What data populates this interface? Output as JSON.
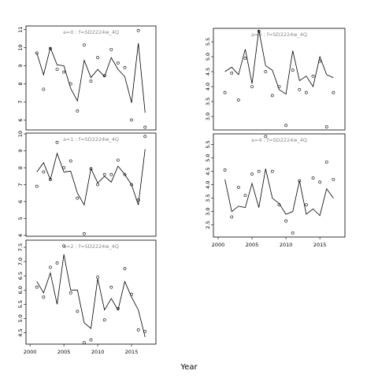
{
  "xlabel": "Year",
  "chart_data": [
    {
      "type": "line",
      "title": "a=0  :  f=SD2224w_4Q",
      "x": [
        2001,
        2002,
        2003,
        2004,
        2005,
        2006,
        2007,
        2008,
        2009,
        2010,
        2011,
        2012,
        2013,
        2014,
        2015,
        2016,
        2017
      ],
      "series": [
        {
          "style": "points",
          "color": "#000000",
          "values": [
            9.7,
            7.7,
            9.95,
            8.8,
            8.65,
            8.0,
            6.5,
            10.15,
            8.15,
            9.45,
            8.45,
            9.9,
            9.15,
            8.9,
            6.0,
            10.95,
            5.6
          ]
        },
        {
          "style": "line",
          "color": "#000000",
          "values": [
            9.7,
            8.5,
            10.0,
            9.05,
            9.0,
            7.75,
            7.05,
            9.3,
            8.35,
            8.8,
            8.4,
            9.45,
            8.8,
            8.4,
            6.95,
            10.25,
            6.4
          ]
        }
      ],
      "xlim": [
        1999.4,
        2018.6
      ],
      "ylim": [
        5.45,
        11.2
      ],
      "yticks": [
        6,
        7,
        8,
        9,
        10,
        11
      ]
    },
    {
      "type": "line",
      "title": "a=1  :  f=SD2224w_4Q",
      "x": [
        2001,
        2002,
        2003,
        2004,
        2005,
        2006,
        2007,
        2008,
        2009,
        2010,
        2011,
        2012,
        2013,
        2014,
        2015,
        2016,
        2017
      ],
      "series": [
        {
          "style": "points",
          "color": "#000000",
          "values": [
            6.9,
            7.75,
            7.3,
            9.5,
            8.0,
            8.4,
            6.2,
            4.1,
            7.95,
            7.0,
            7.6,
            7.6,
            8.45,
            7.6,
            7.0,
            6.1,
            9.85
          ]
        },
        {
          "style": "line",
          "color": "#000000",
          "values": [
            7.75,
            8.3,
            7.3,
            8.85,
            7.75,
            7.8,
            6.5,
            5.8,
            7.95,
            7.1,
            7.5,
            7.15,
            8.1,
            7.6,
            7.0,
            5.8,
            9.1
          ]
        }
      ],
      "xlim": [
        1999.4,
        2018.6
      ],
      "ylim": [
        3.95,
        10.05
      ],
      "yticks": [
        4,
        5,
        6,
        7,
        8,
        9,
        10
      ]
    },
    {
      "type": "line",
      "title": "a=2  :  f=SD2224w_4Q",
      "x": [
        2001,
        2002,
        2003,
        2004,
        2005,
        2006,
        2007,
        2008,
        2009,
        2010,
        2011,
        2012,
        2013,
        2014,
        2015,
        2016,
        2017
      ],
      "series": [
        {
          "style": "points",
          "color": "#000000",
          "values": [
            6.1,
            5.75,
            6.8,
            6.95,
            7.55,
            5.9,
            5.25,
            4.15,
            4.25,
            6.45,
            4.95,
            6.1,
            5.35,
            6.75,
            5.85,
            4.6,
            4.55
          ]
        },
        {
          "style": "line",
          "color": "#000000",
          "values": [
            6.3,
            5.9,
            6.6,
            5.5,
            7.25,
            6.0,
            6.0,
            4.85,
            4.65,
            6.4,
            5.3,
            5.7,
            5.3,
            6.3,
            5.75,
            5.3,
            4.35
          ]
        }
      ],
      "xlim": [
        1999.4,
        2018.6
      ],
      "ylim": [
        4.1,
        7.75
      ],
      "yticks": [
        4.5,
        {
          "value": 5,
          "label": "5.0"
        },
        5.5,
        {
          "value": 6,
          "label": "6.0"
        },
        6.5,
        {
          "value": 7,
          "label": "7.0"
        },
        7.5
      ],
      "xticks": [
        2000,
        2005,
        2010,
        2015
      ]
    },
    {
      "type": "line",
      "title": "a=3  :  f=SD2224w_4Q",
      "x": [
        2001,
        2002,
        2003,
        2004,
        2005,
        2006,
        2007,
        2008,
        2009,
        2010,
        2011,
        2012,
        2013,
        2014,
        2015,
        2016,
        2017
      ],
      "series": [
        {
          "style": "points",
          "color": "#000000",
          "values": [
            3.8,
            4.45,
            3.55,
            4.95,
            4.0,
            5.85,
            4.5,
            3.7,
            4.0,
            2.7,
            4.55,
            3.9,
            3.8,
            4.35,
            4.85,
            2.65,
            3.8
          ]
        },
        {
          "style": "line",
          "color": "#000000",
          "values": [
            4.5,
            4.65,
            4.4,
            5.25,
            4.1,
            5.9,
            4.7,
            4.55,
            3.9,
            3.75,
            5.2,
            4.2,
            4.35,
            4.0,
            5.0,
            4.4,
            4.3
          ]
        }
      ],
      "xlim": [
        1999.3,
        2018.7
      ],
      "ylim": [
        2.55,
        5.95
      ],
      "yticks": [
        {
          "value": 3,
          "label": "3.0"
        },
        3.5,
        {
          "value": 4,
          "label": "4.0"
        },
        4.5,
        {
          "value": 5,
          "label": "5.0"
        },
        5.5
      ]
    },
    {
      "type": "line",
      "title": "a=4  :  f=SD2224w_4Q",
      "x": [
        2001,
        2002,
        2003,
        2004,
        2005,
        2006,
        2007,
        2008,
        2009,
        2010,
        2011,
        2012,
        2013,
        2014,
        2015,
        2016,
        2017
      ],
      "series": [
        {
          "style": "points",
          "color": "#000000",
          "values": [
            4.55,
            2.8,
            3.9,
            3.6,
            4.4,
            4.5,
            5.8,
            4.5,
            3.25,
            2.65,
            2.2,
            4.15,
            3.25,
            4.25,
            4.1,
            4.85,
            4.2
          ]
        },
        {
          "style": "line",
          "color": "#000000",
          "values": [
            4.2,
            3.0,
            3.2,
            3.15,
            4.05,
            3.15,
            4.6,
            3.5,
            3.3,
            2.9,
            3.0,
            4.15,
            2.9,
            3.1,
            2.85,
            3.85,
            3.5
          ]
        }
      ],
      "xlim": [
        1999.3,
        2018.7
      ],
      "ylim": [
        2.05,
        5.9
      ],
      "yticks": [
        2.5,
        {
          "value": 3,
          "label": "3.0"
        },
        3.5,
        {
          "value": 4,
          "label": "4.0"
        },
        4.5,
        {
          "value": 5,
          "label": "5.0"
        },
        5.5
      ],
      "xticks": [
        2000,
        2005,
        2010,
        2015
      ]
    }
  ]
}
